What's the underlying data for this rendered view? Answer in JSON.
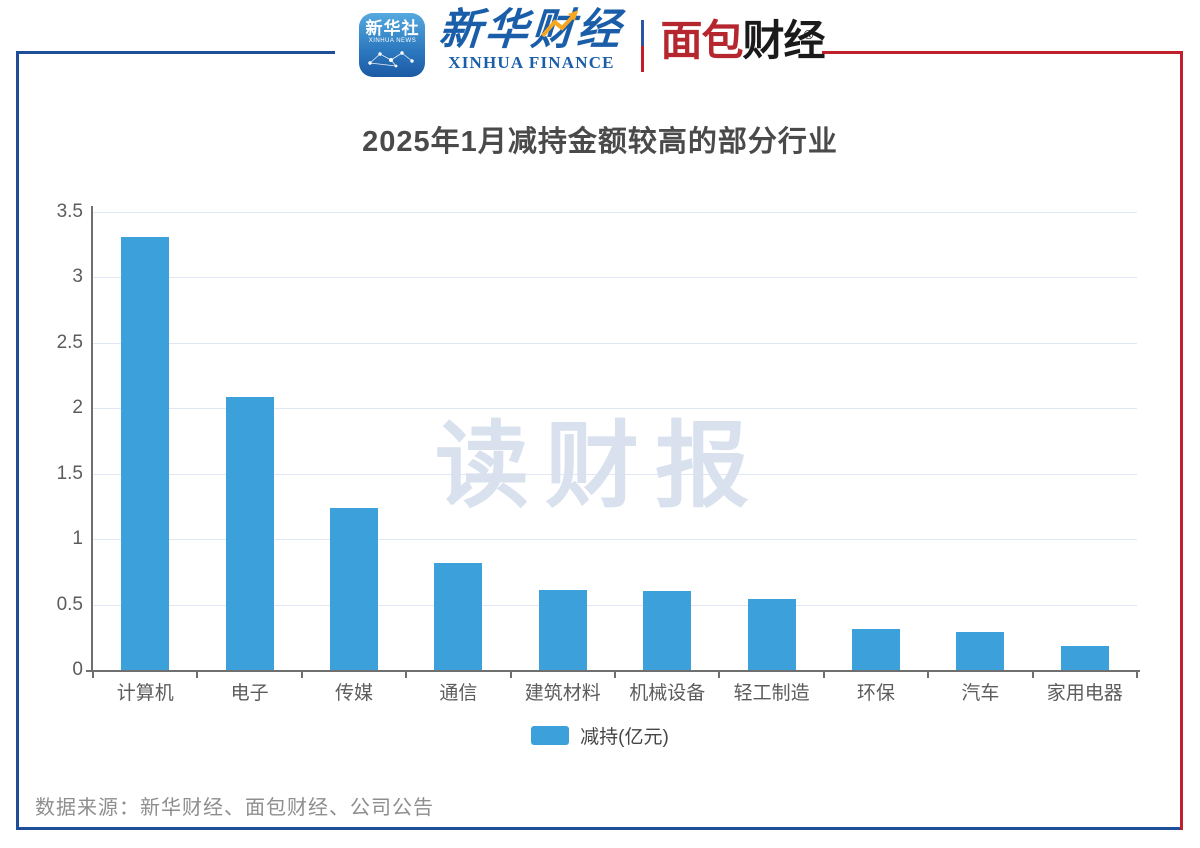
{
  "header": {
    "xinhua_app": {
      "line1": "新华社",
      "line2": "XINHUA NEWS"
    },
    "xinhua_finance": {
      "cn": "新华财经",
      "en": "XINHUA FINANCE"
    },
    "bread_finance": {
      "cn_red": "面包",
      "cn_black": "财经",
      "reg": "®"
    }
  },
  "title": "2025年1月减持金额较高的部分行业",
  "watermark": "读财报",
  "chart_data": {
    "type": "bar",
    "title": "2025年1月减持金额较高的部分行业",
    "categories": [
      "计算机",
      "电子",
      "传媒",
      "通信",
      "建筑材料",
      "机械设备",
      "轻工制造",
      "环保",
      "汽车",
      "家用电器"
    ],
    "values": [
      3.31,
      2.09,
      1.24,
      0.82,
      0.61,
      0.6,
      0.54,
      0.31,
      0.29,
      0.18
    ],
    "series_name": "减持(亿元)",
    "xlabel": "",
    "ylabel": "",
    "ylim": [
      0,
      3.5
    ],
    "ytick_step": 0.5,
    "grid": true,
    "legend_position": "bottom",
    "bar_color": "#3CA0DB"
  },
  "footer": {
    "source": "数据来源：新华财经、面包财经、公司公告"
  },
  "colors": {
    "frame_blue": "#1F4E99",
    "frame_red": "#C0202C",
    "bar_blue": "#3CA0DB",
    "xinhua_blue": "#1A5EA9",
    "bread_red": "#B5262E",
    "bread_black": "#1A1A1A",
    "watermark_gray_blue": "#D9E1EF"
  }
}
